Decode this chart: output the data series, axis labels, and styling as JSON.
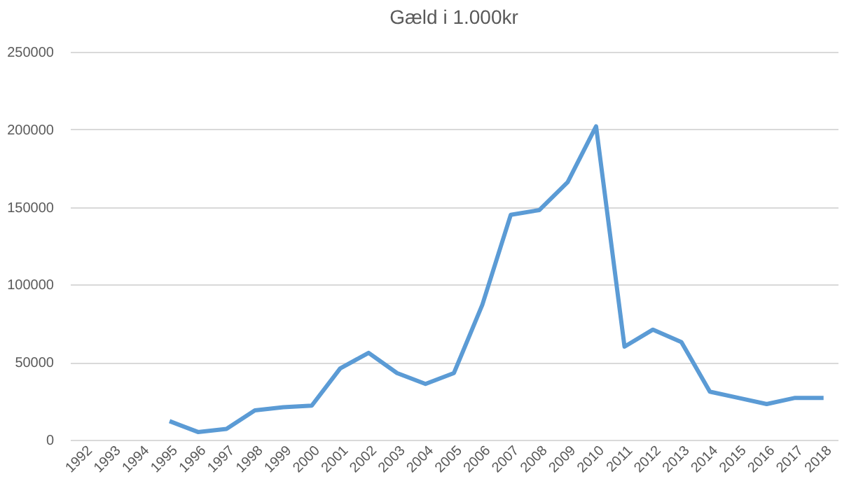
{
  "chart_data": {
    "type": "line",
    "title": "Gæld i 1.000kr",
    "categories": [
      "1992",
      "1993",
      "1994",
      "1995",
      "1996",
      "1997",
      "1998",
      "1999",
      "2000",
      "2001",
      "2002",
      "2003",
      "2004",
      "2005",
      "2006",
      "2007",
      "2008",
      "2009",
      "2010",
      "2011",
      "2012",
      "2013",
      "2014",
      "2015",
      "2016",
      "2017",
      "2018"
    ],
    "series": [
      {
        "color": "#5b9bd5",
        "values": [
          null,
          null,
          null,
          12000,
          5000,
          7000,
          19000,
          21000,
          22000,
          46000,
          56000,
          43000,
          36000,
          43000,
          87000,
          145000,
          148000,
          166000,
          202000,
          60000,
          71000,
          63000,
          31000,
          27000,
          23000,
          27000,
          27000
        ]
      }
    ],
    "ylim": [
      0,
      250000
    ],
    "yticks": [
      0,
      50000,
      100000,
      150000,
      200000,
      250000
    ],
    "grid": "y",
    "marker": "none",
    "line_style": "solid"
  }
}
